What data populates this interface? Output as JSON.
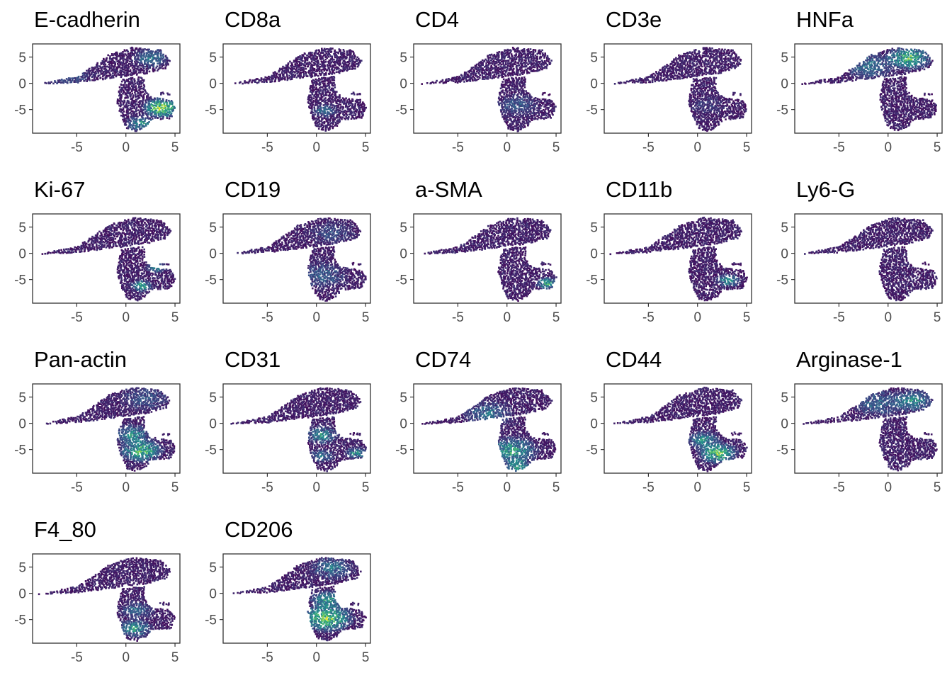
{
  "figure": {
    "colors": {
      "low": "#440154",
      "mid": "#3b528b",
      "teal": "#21918c",
      "green": "#5ec962",
      "high": "#fde725",
      "axis": "#333333",
      "tick_text": "#4d4d4d"
    }
  },
  "chart_data": [
    {
      "type": "scatter",
      "title": "E-cadherin",
      "xlim": [
        -9.5,
        5.5
      ],
      "ylim": [
        -9.5,
        7.5
      ],
      "xticks": [
        -5,
        0,
        5
      ],
      "yticks": [
        5,
        0,
        -5
      ],
      "highlight": [
        {
          "x": 3.5,
          "y": -4.5,
          "r": 2.2,
          "level": 0.85
        },
        {
          "x": 1.5,
          "y": -7.5,
          "r": 1.8,
          "level": 0.45
        },
        {
          "x": 2.5,
          "y": 5,
          "r": 2.2,
          "level": 0.35
        },
        {
          "x": -6,
          "y": 1.5,
          "r": 3,
          "level": 0.2
        }
      ]
    },
    {
      "type": "scatter",
      "title": "CD8a",
      "xlim": [
        -9.5,
        5.5
      ],
      "ylim": [
        -9.5,
        7.5
      ],
      "xticks": [
        -5,
        0,
        5
      ],
      "yticks": [
        5,
        0,
        -5
      ],
      "highlight": [
        {
          "x": 0.8,
          "y": -5,
          "r": 1.5,
          "level": 0.3
        }
      ]
    },
    {
      "type": "scatter",
      "title": "CD4",
      "xlim": [
        -9.5,
        5.5
      ],
      "ylim": [
        -9.5,
        7.5
      ],
      "xticks": [
        -5,
        0,
        5
      ],
      "yticks": [
        5,
        0,
        -5
      ],
      "highlight": [
        {
          "x": 1,
          "y": -4,
          "r": 2.5,
          "level": 0.22
        }
      ]
    },
    {
      "type": "scatter",
      "title": "CD3e",
      "xlim": [
        -9.5,
        5.5
      ],
      "ylim": [
        -9.5,
        7.5
      ],
      "xticks": [
        -5,
        0,
        5
      ],
      "yticks": [
        5,
        0,
        -5
      ],
      "highlight": [
        {
          "x": 1,
          "y": -4,
          "r": 2,
          "level": 0.12
        }
      ]
    },
    {
      "type": "scatter",
      "title": "HNFa",
      "xlim": [
        -9.5,
        5.5
      ],
      "ylim": [
        -9.5,
        7.5
      ],
      "xticks": [
        -5,
        0,
        5
      ],
      "yticks": [
        5,
        0,
        -5
      ],
      "highlight": [
        {
          "x": 2,
          "y": 5,
          "r": 2.6,
          "level": 0.7
        },
        {
          "x": -2,
          "y": 3.5,
          "r": 3,
          "level": 0.35
        }
      ]
    },
    {
      "type": "scatter",
      "title": "Ki-67",
      "xlim": [
        -9.5,
        5.5
      ],
      "ylim": [
        -9.5,
        7.5
      ],
      "xticks": [
        -5,
        0,
        5
      ],
      "yticks": [
        5,
        0,
        -5
      ],
      "highlight": [
        {
          "x": 1.5,
          "y": -6,
          "r": 1.3,
          "level": 0.55
        },
        {
          "x": 3,
          "y": -2.5,
          "r": 1.2,
          "level": 0.45
        }
      ]
    },
    {
      "type": "scatter",
      "title": "CD19",
      "xlim": [
        -9.5,
        5.5
      ],
      "ylim": [
        -9.5,
        7.5
      ],
      "xticks": [
        -5,
        0,
        5
      ],
      "yticks": [
        5,
        0,
        -5
      ],
      "highlight": [
        {
          "x": 0.5,
          "y": -4,
          "r": 3,
          "level": 0.25
        },
        {
          "x": 1.5,
          "y": 4,
          "r": 2.5,
          "level": 0.2
        }
      ]
    },
    {
      "type": "scatter",
      "title": "a-SMA",
      "xlim": [
        -9.5,
        5.5
      ],
      "ylim": [
        -9.5,
        7.5
      ],
      "xticks": [
        -5,
        0,
        5
      ],
      "yticks": [
        5,
        0,
        -5
      ],
      "highlight": [
        {
          "x": 4,
          "y": -5.5,
          "r": 1.3,
          "level": 0.6
        }
      ]
    },
    {
      "type": "scatter",
      "title": "CD11b",
      "xlim": [
        -9.5,
        5.5
      ],
      "ylim": [
        -9.5,
        7.5
      ],
      "xticks": [
        -5,
        0,
        5
      ],
      "yticks": [
        5,
        0,
        -5
      ],
      "highlight": [
        {
          "x": 3,
          "y": -5,
          "r": 1.4,
          "level": 0.5
        }
      ]
    },
    {
      "type": "scatter",
      "title": "Ly6-G",
      "xlim": [
        -9.5,
        5.5
      ],
      "ylim": [
        -9.5,
        7.5
      ],
      "xticks": [
        -5,
        0,
        5
      ],
      "yticks": [
        5,
        0,
        -5
      ],
      "highlight": []
    },
    {
      "type": "scatter",
      "title": "Pan-actin",
      "xlim": [
        -9.5,
        5.5
      ],
      "ylim": [
        -9.5,
        7.5
      ],
      "xticks": [
        -5,
        0,
        5
      ],
      "yticks": [
        5,
        0,
        -5
      ],
      "highlight": [
        {
          "x": 1.5,
          "y": -5,
          "r": 2.5,
          "level": 0.7
        },
        {
          "x": 0.5,
          "y": -2,
          "r": 2.2,
          "level": 0.45
        },
        {
          "x": 2,
          "y": 5,
          "r": 3,
          "level": 0.2
        }
      ]
    },
    {
      "type": "scatter",
      "title": "CD31",
      "xlim": [
        -9.5,
        5.5
      ],
      "ylim": [
        -9.5,
        7.5
      ],
      "xticks": [
        -5,
        0,
        5
      ],
      "yticks": [
        5,
        0,
        -5
      ],
      "highlight": [
        {
          "x": 0.5,
          "y": -2,
          "r": 2,
          "level": 0.45
        },
        {
          "x": 4,
          "y": -5.5,
          "r": 1.3,
          "level": 0.5
        },
        {
          "x": 0.5,
          "y": -6,
          "r": 1.5,
          "level": 0.35
        }
      ]
    },
    {
      "type": "scatter",
      "title": "CD74",
      "xlim": [
        -9.5,
        5.5
      ],
      "ylim": [
        -9.5,
        7.5
      ],
      "xticks": [
        -5,
        0,
        5
      ],
      "yticks": [
        5,
        0,
        -5
      ],
      "highlight": [
        {
          "x": 0.5,
          "y": -5,
          "r": 3,
          "level": 0.55
        },
        {
          "x": 1,
          "y": -8,
          "r": 1.6,
          "level": 0.55
        },
        {
          "x": -2,
          "y": 2,
          "r": 3,
          "level": 0.3
        }
      ]
    },
    {
      "type": "scatter",
      "title": "CD44",
      "xlim": [
        -9.5,
        5.5
      ],
      "ylim": [
        -9.5,
        7.5
      ],
      "xticks": [
        -5,
        0,
        5
      ],
      "yticks": [
        5,
        0,
        -5
      ],
      "highlight": [
        {
          "x": 2,
          "y": -5.5,
          "r": 2.3,
          "level": 0.75
        },
        {
          "x": 0.5,
          "y": -3,
          "r": 2,
          "level": 0.45
        }
      ]
    },
    {
      "type": "scatter",
      "title": "Arginase-1",
      "xlim": [
        -9.5,
        5.5
      ],
      "ylim": [
        -9.5,
        7.5
      ],
      "xticks": [
        -5,
        0,
        5
      ],
      "yticks": [
        5,
        0,
        -5
      ],
      "highlight": [
        {
          "x": 2.5,
          "y": 4.5,
          "r": 2.5,
          "level": 0.45
        },
        {
          "x": -1,
          "y": 4,
          "r": 3,
          "level": 0.3
        }
      ]
    },
    {
      "type": "scatter",
      "title": "F4_80",
      "xlim": [
        -9.5,
        5.5
      ],
      "ylim": [
        -9.5,
        7.5
      ],
      "xticks": [
        -5,
        0,
        5
      ],
      "yticks": [
        5,
        0,
        -5
      ],
      "highlight": [
        {
          "x": 0.8,
          "y": -6.5,
          "r": 2,
          "level": 0.5
        },
        {
          "x": 1,
          "y": -3,
          "r": 2,
          "level": 0.3
        }
      ]
    },
    {
      "type": "scatter",
      "title": "CD206",
      "xlim": [
        -9.5,
        5.5
      ],
      "ylim": [
        -9.5,
        7.5
      ],
      "xticks": [
        -5,
        0,
        5
      ],
      "yticks": [
        5,
        0,
        -5
      ],
      "highlight": [
        {
          "x": 1,
          "y": -4.5,
          "r": 3,
          "level": 0.8
        },
        {
          "x": 1,
          "y": -1,
          "r": 2,
          "level": 0.55
        },
        {
          "x": 1.5,
          "y": 5,
          "r": 2.5,
          "level": 0.35
        }
      ]
    }
  ]
}
